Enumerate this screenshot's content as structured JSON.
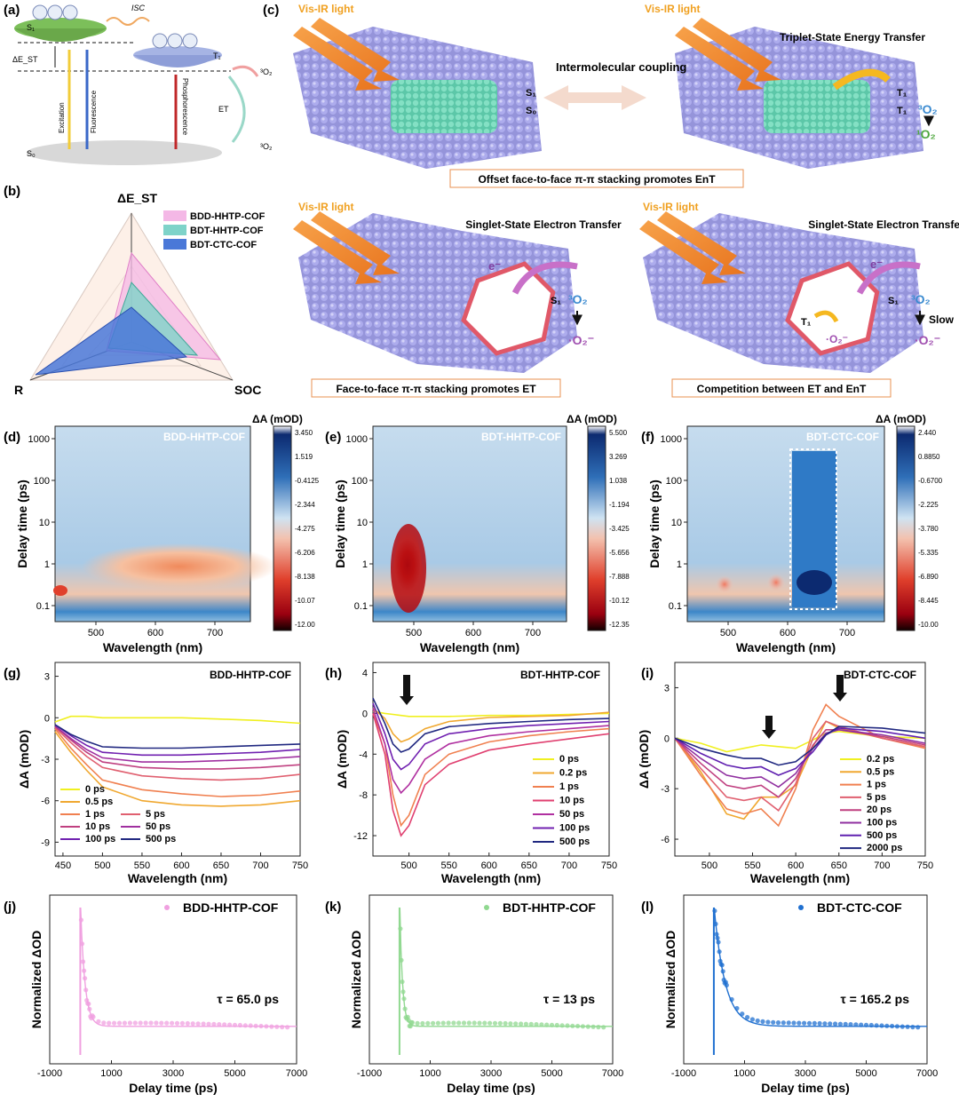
{
  "panel_labels": [
    "(a)",
    "(b)",
    "(c)",
    "(d)",
    "(e)",
    "(f)",
    "(g)",
    "(h)",
    "(i)",
    "(j)",
    "(k)",
    "(l)"
  ],
  "panel_a": {
    "s1": "S₁",
    "t1": "T₁",
    "s0": "S₀",
    "dest": "ΔE_ST",
    "isc": "ISC",
    "excitation": "Excitation",
    "fluorescence": "Fluorescence",
    "phosphorescence": "Phosphorescence",
    "et": "ET",
    "o2_triplet_top": "³O₂",
    "o2_triplet_bottom": "³O₂"
  },
  "panel_b": {
    "axes": [
      "ΔE_ST",
      "R",
      "SOC"
    ],
    "legend": [
      "BDD-HHTP-COF",
      "BDT-HHTP-COF",
      "BDT-CTC-COF"
    ],
    "colors": [
      "#f4b8e6",
      "#7ed3c9",
      "#4a78d8"
    ]
  },
  "panel_c": {
    "vis_ir": "Vis-IR light",
    "intermolecular": "Intermolecular coupling",
    "triplet_transfer": "Triplet-State Energy Transfer",
    "singlet_transfer": "Singlet-State Electron Transfer",
    "caption_top": "Offset face-to-face π-π stacking promotes EnT",
    "caption_left": "Face-to-face π-π stacking promotes ET",
    "caption_right": "Competition between ET and EnT",
    "s1": "S₁",
    "s0": "S₀",
    "t1": "T₁",
    "o2_triplet": "³O₂",
    "o2_singlet": "¹O₂",
    "superoxide": "·O₂⁻",
    "electron": "e⁻",
    "slow": "Slow"
  },
  "heatmaps": [
    {
      "title": "BDD-HHTP-COF",
      "colorbar_label": "ΔA (mOD)",
      "colorbar_ticks": [
        "3.450",
        "1.519",
        "-0.4125",
        "-2.344",
        "-4.275",
        "-6.206",
        "-8.138",
        "-10.07",
        "-12.00"
      ]
    },
    {
      "title": "BDT-HHTP-COF",
      "colorbar_label": "ΔA (mOD)",
      "colorbar_ticks": [
        "5.500",
        "3.269",
        "1.038",
        "-1.194",
        "-3.425",
        "-5.656",
        "-7.888",
        "-10.12",
        "-12.35"
      ]
    },
    {
      "title": "BDT-CTC-COF",
      "colorbar_label": "ΔA (mOD)",
      "colorbar_ticks": [
        "2.440",
        "0.8850",
        "-0.6700",
        "-2.225",
        "-3.780",
        "-5.335",
        "-6.890",
        "-8.445",
        "-10.00"
      ]
    }
  ],
  "heatmap_axes": {
    "xlabel": "Wavelength (nm)",
    "ylabel": "Delay time (ps)",
    "yticks": [
      "1000",
      "100",
      "10",
      "1",
      "0.1"
    ],
    "xticks": [
      "500",
      "600",
      "700"
    ]
  },
  "chart_data": [
    {
      "type": "line",
      "title": "BDD-HHTP-COF",
      "xlabel": "Wavelength (nm)",
      "ylabel": "ΔA (mOD)",
      "xlim": [
        440,
        750
      ],
      "ylim": [
        -10,
        4
      ],
      "xticks": [
        450,
        500,
        550,
        600,
        650,
        700,
        750
      ],
      "yticks": [
        3,
        0,
        -3,
        -6,
        -9
      ],
      "x": [
        440,
        460,
        480,
        500,
        550,
        600,
        650,
        700,
        750
      ],
      "series": [
        {
          "name": "0 ps",
          "color": "#f0f020",
          "values": [
            -0.3,
            0.1,
            0.1,
            0,
            0,
            0,
            -0.1,
            -0.2,
            -0.4
          ]
        },
        {
          "name": "0.5 ps",
          "color": "#f0a830",
          "values": [
            -1,
            -2.5,
            -3.8,
            -5,
            -6,
            -6.3,
            -6.4,
            -6.3,
            -6
          ]
        },
        {
          "name": "1 ps",
          "color": "#f08050",
          "values": [
            -0.8,
            -2.2,
            -3.4,
            -4.5,
            -5.2,
            -5.5,
            -5.7,
            -5.6,
            -5.3
          ]
        },
        {
          "name": "5 ps",
          "color": "#e06070",
          "values": [
            -0.7,
            -1.8,
            -2.8,
            -3.6,
            -4.2,
            -4.4,
            -4.5,
            -4.4,
            -4.1
          ]
        },
        {
          "name": "10 ps",
          "color": "#c04080",
          "values": [
            -0.6,
            -1.6,
            -2.5,
            -3.2,
            -3.6,
            -3.7,
            -3.7,
            -3.6,
            -3.4
          ]
        },
        {
          "name": "50 ps",
          "color": "#a030a0",
          "values": [
            -0.6,
            -1.5,
            -2.3,
            -2.9,
            -3.2,
            -3.2,
            -3.1,
            -3,
            -2.8
          ]
        },
        {
          "name": "100 ps",
          "color": "#7020b0",
          "values": [
            -0.5,
            -1.3,
            -2,
            -2.5,
            -2.7,
            -2.7,
            -2.6,
            -2.5,
            -2.3
          ]
        },
        {
          "name": "500 ps",
          "color": "#202880",
          "values": [
            -0.5,
            -1.2,
            -1.7,
            -2.1,
            -2.2,
            -2.2,
            -2.1,
            -2,
            -1.9
          ]
        }
      ]
    },
    {
      "type": "line",
      "title": "BDT-HHTP-COF",
      "xlabel": "Wavelength (nm)",
      "ylabel": "ΔA (mOD)",
      "xlim": [
        455,
        750
      ],
      "ylim": [
        -14,
        5
      ],
      "xticks": [
        500,
        550,
        600,
        650,
        700,
        750
      ],
      "yticks": [
        4,
        0,
        -4,
        -8,
        -12
      ],
      "x": [
        455,
        470,
        480,
        490,
        500,
        520,
        550,
        600,
        650,
        700,
        750
      ],
      "series": [
        {
          "name": "0 ps",
          "color": "#f0f020",
          "values": [
            0.2,
            0,
            -0.1,
            -0.2,
            -0.3,
            -0.3,
            -0.3,
            -0.2,
            -0.2,
            -0.1,
            0
          ]
        },
        {
          "name": "0.2 ps",
          "color": "#f0a830",
          "values": [
            0.5,
            -0.5,
            -2,
            -2.8,
            -2.5,
            -1.5,
            -0.8,
            -0.4,
            -0.3,
            -0.2,
            0.1
          ]
        },
        {
          "name": "1 ps",
          "color": "#f08050",
          "values": [
            0,
            -3,
            -8,
            -11,
            -10,
            -6,
            -4,
            -2.8,
            -2.2,
            -1.8,
            -1.5
          ]
        },
        {
          "name": "10 ps",
          "color": "#e04070",
          "values": [
            0,
            -4,
            -9.5,
            -12,
            -11,
            -7,
            -5,
            -3.6,
            -3,
            -2.5,
            -2
          ]
        },
        {
          "name": "50 ps",
          "color": "#b030a0",
          "values": [
            0.5,
            -3,
            -6.5,
            -7.8,
            -7,
            -4.5,
            -3,
            -2.2,
            -1.8,
            -1.5,
            -1.2
          ]
        },
        {
          "name": "100 ps",
          "color": "#7020b0",
          "values": [
            1,
            -2,
            -4.5,
            -5.5,
            -5,
            -3,
            -2,
            -1.5,
            -1.2,
            -1,
            -0.8
          ]
        },
        {
          "name": "500 ps",
          "color": "#202880",
          "values": [
            1.5,
            -1,
            -3,
            -3.8,
            -3.5,
            -2,
            -1.3,
            -1,
            -0.8,
            -0.6,
            -0.5
          ]
        }
      ]
    },
    {
      "type": "line",
      "title": "BDT-CTC-COF",
      "xlabel": "Wavelength (nm)",
      "ylabel": "ΔA (mOD)",
      "xlim": [
        460,
        750
      ],
      "ylim": [
        -7,
        4.5
      ],
      "xticks": [
        500,
        550,
        600,
        650,
        700,
        750
      ],
      "yticks": [
        3,
        0,
        -3,
        -6
      ],
      "x": [
        460,
        490,
        520,
        540,
        560,
        580,
        600,
        620,
        635,
        650,
        700,
        750
      ],
      "series": [
        {
          "name": "0.2 ps",
          "color": "#f0f020",
          "values": [
            0,
            -0.3,
            -0.8,
            -0.6,
            -0.4,
            -0.5,
            -0.6,
            -0.1,
            0.3,
            0.4,
            0.1,
            0
          ]
        },
        {
          "name": "0.5 ps",
          "color": "#f0a830",
          "values": [
            0,
            -2,
            -4.5,
            -4.8,
            -3.5,
            -3.5,
            -2.8,
            -0.5,
            1,
            0.6,
            0,
            -0.5
          ]
        },
        {
          "name": "1 ps",
          "color": "#f08050",
          "values": [
            0,
            -2.2,
            -4.2,
            -4.5,
            -4.2,
            -5.2,
            -3,
            0.5,
            2,
            1.3,
            0,
            -0.6
          ]
        },
        {
          "name": "5 ps",
          "color": "#e06070",
          "values": [
            0,
            -1.8,
            -3.5,
            -3.7,
            -3.5,
            -4.3,
            -2.7,
            0,
            1,
            0.7,
            0,
            -0.5
          ]
        },
        {
          "name": "20 ps",
          "color": "#c04080",
          "values": [
            0,
            -1.5,
            -2.8,
            -3,
            -2.8,
            -3.5,
            -2.4,
            -0.4,
            0.5,
            0.5,
            0.1,
            -0.4
          ]
        },
        {
          "name": "100 ps",
          "color": "#9030a0",
          "values": [
            0,
            -1.2,
            -2.2,
            -2.4,
            -2.3,
            -2.9,
            -2.1,
            -0.6,
            0.3,
            0.5,
            0.2,
            -0.3
          ]
        },
        {
          "name": "500 ps",
          "color": "#6020b0",
          "values": [
            0,
            -0.9,
            -1.6,
            -1.8,
            -1.7,
            -2.2,
            -1.8,
            -0.8,
            0.2,
            0.6,
            0.4,
            0
          ]
        },
        {
          "name": "2000 ps",
          "color": "#202880",
          "values": [
            0,
            -0.6,
            -1,
            -1.2,
            -1.2,
            -1.6,
            -1.4,
            -0.6,
            0.2,
            0.7,
            0.6,
            0.3
          ]
        }
      ]
    },
    {
      "type": "scatter",
      "title": "BDD-HHTP-COF",
      "xlabel": "Delay time (ps)",
      "ylabel": "Normalized ΔOD",
      "annotation": "τ = 65.0 ps",
      "color": "#f0a0e0",
      "xlim": [
        -1000,
        7000
      ],
      "xticks": [
        -1000,
        1000,
        3000,
        5000,
        7000
      ],
      "tau": 65.0
    },
    {
      "type": "scatter",
      "title": "BDT-HHTP-COF",
      "xlabel": "Delay time (ps)",
      "ylabel": "Normalized ΔOD",
      "annotation": "τ = 13 ps",
      "color": "#90d890",
      "xlim": [
        -1000,
        7000
      ],
      "xticks": [
        -1000,
        1000,
        3000,
        5000,
        7000
      ],
      "tau": 13
    },
    {
      "type": "scatter",
      "title": "BDT-CTC-COF",
      "xlabel": "Delay time (ps)",
      "ylabel": "Normalized ΔOD",
      "annotation": "τ = 165.2 ps",
      "color": "#2070d0",
      "xlim": [
        -1000,
        7000
      ],
      "xticks": [
        -1000,
        1000,
        3000,
        5000,
        7000
      ],
      "tau": 165.2
    }
  ]
}
